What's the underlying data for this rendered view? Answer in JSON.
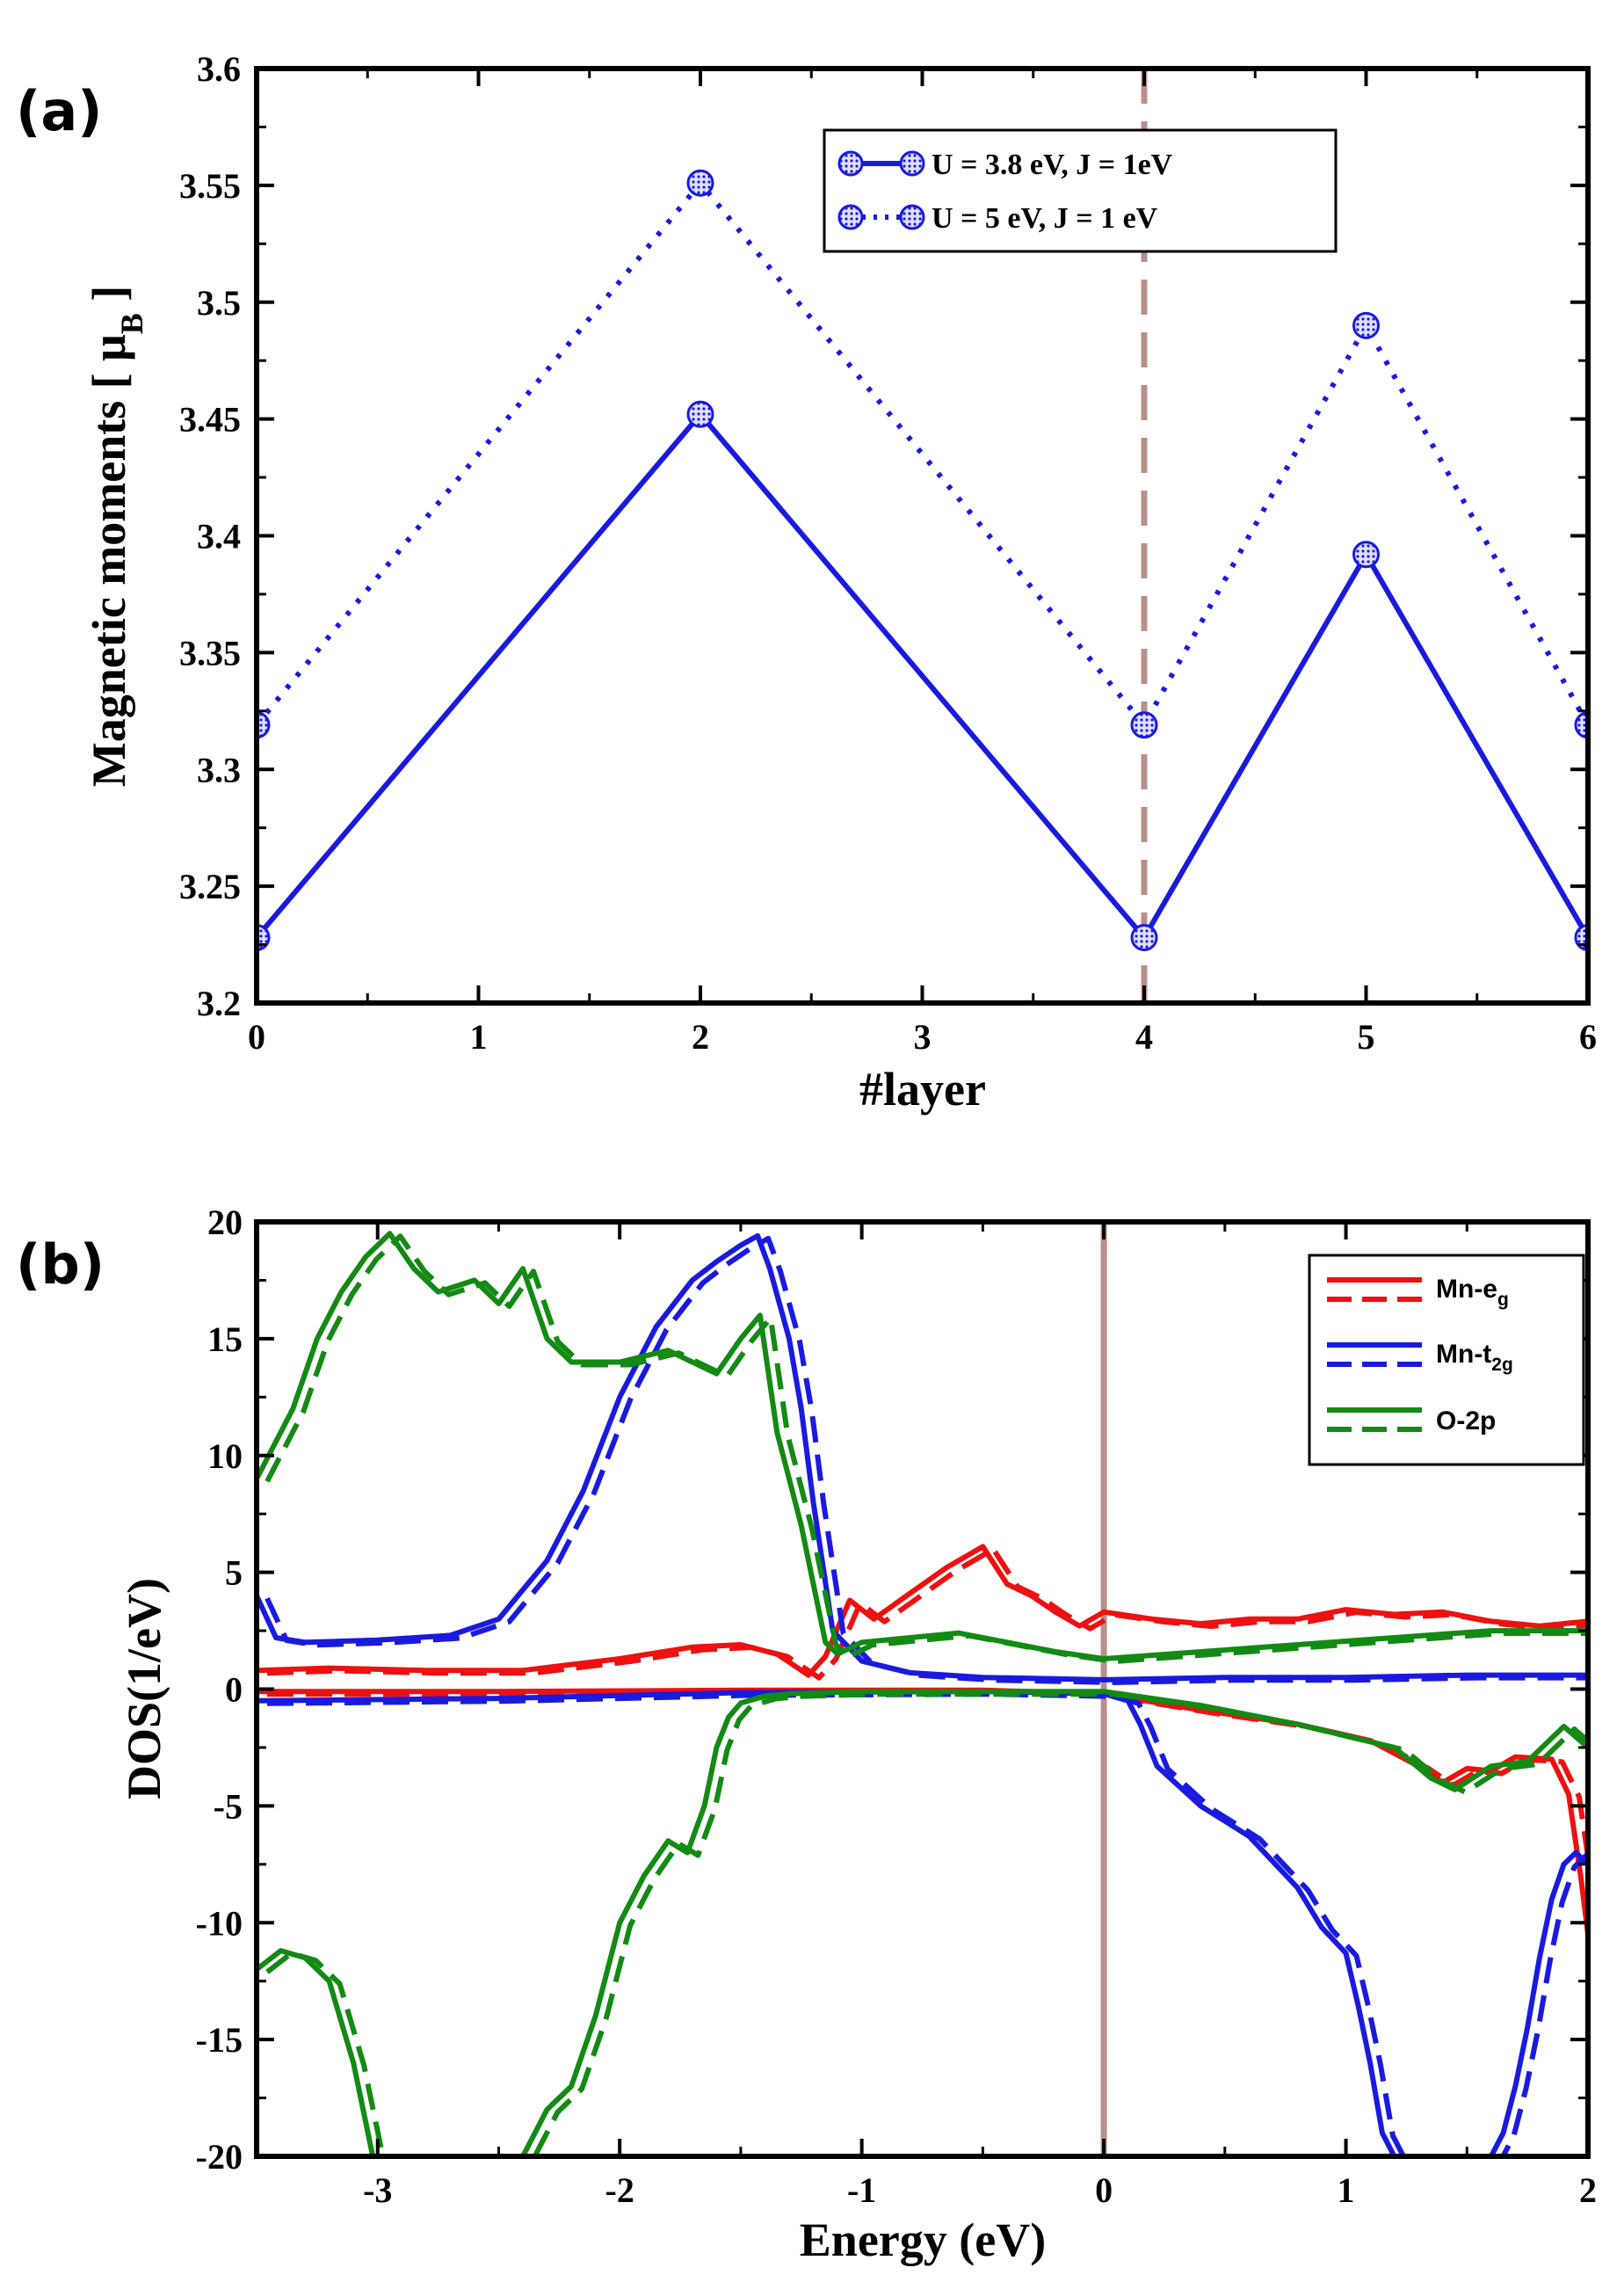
{
  "panels": {
    "a": {
      "label": "(a)"
    },
    "b": {
      "label": "(b)"
    }
  },
  "chart_data": [
    {
      "id": "a",
      "type": "line",
      "title": "",
      "xlabel": "#layer",
      "ylabel": "Magnetic moments [ μB ]",
      "ylabel_main": "Magnetic moments [ μ",
      "ylabel_sub": "B",
      "ylabel_end": " ]",
      "xlim": [
        0,
        6
      ],
      "ylim": [
        3.2,
        3.6
      ],
      "xticks": [
        0,
        1,
        2,
        3,
        4,
        5,
        6
      ],
      "xtick_labels": [
        "0",
        "1",
        "2",
        "3",
        "4",
        "5",
        "6"
      ],
      "yticks": [
        3.2,
        3.25,
        3.3,
        3.35,
        3.4,
        3.45,
        3.5,
        3.55,
        3.6
      ],
      "ytick_labels": [
        "3.2",
        "3.25",
        "3.3",
        "3.35",
        "3.4",
        "3.45",
        "3.5",
        "3.55",
        "3.6"
      ],
      "vline": {
        "x": 4,
        "style": "dashed",
        "color": "#b8908a"
      },
      "legend_position": "top-right",
      "series": [
        {
          "name": "U = 3.8 eV, J = 1eV",
          "style": "solid",
          "color": "#1a1adf",
          "x": [
            0,
            2,
            4,
            5,
            6
          ],
          "y": [
            3.228,
            3.452,
            3.228,
            3.392,
            3.228
          ]
        },
        {
          "name": "U = 5 eV, J = 1 eV",
          "style": "dotted",
          "color": "#1a1adf",
          "x": [
            0,
            2,
            4,
            5,
            6
          ],
          "y": [
            3.319,
            3.551,
            3.319,
            3.49,
            3.319
          ]
        }
      ]
    },
    {
      "id": "b",
      "type": "line",
      "title": "",
      "xlabel": "Energy (eV)",
      "ylabel": "DOS(1/eV)",
      "xlim": [
        -3.5,
        2
      ],
      "ylim": [
        -20,
        20
      ],
      "xticks": [
        -3,
        -2,
        -1,
        0,
        1,
        2
      ],
      "xtick_labels": [
        "-3",
        "-2",
        "-1",
        "0",
        "1",
        "2"
      ],
      "yticks": [
        -20,
        -15,
        -10,
        -5,
        0,
        5,
        10,
        15,
        20
      ],
      "ytick_labels": [
        "-20",
        "-15",
        "-10",
        "-5",
        "0",
        "5",
        "10",
        "15",
        "20"
      ],
      "vline": {
        "x": 0,
        "style": "solid",
        "color": "#b8908a"
      },
      "legend_position": "top-right",
      "legend": [
        {
          "main": "Mn-e",
          "sub": "g",
          "color": "#ee1111"
        },
        {
          "main": "Mn-t",
          "sub": "2g",
          "color": "#1a1adf"
        },
        {
          "main": "O-2p",
          "sub": "",
          "color": "#138a13"
        }
      ],
      "series": [
        {
          "name": "Mn-eg up",
          "color": "#ee1111",
          "style": "solid",
          "x": [
            -3.5,
            -3.2,
            -2.8,
            -2.4,
            -2.0,
            -1.7,
            -1.5,
            -1.35,
            -1.22,
            -1.15,
            -1.05,
            -0.95,
            -0.8,
            -0.65,
            -0.5,
            -0.4,
            -0.3,
            -0.2,
            -0.1,
            0.0,
            0.2,
            0.4,
            0.6,
            0.8,
            1.0,
            1.2,
            1.4,
            1.6,
            1.8,
            2.0
          ],
          "y": [
            0.8,
            0.9,
            0.8,
            0.8,
            1.3,
            1.8,
            1.9,
            1.5,
            0.6,
            1.4,
            3.8,
            3.0,
            4.1,
            5.2,
            6.1,
            4.5,
            4.0,
            3.3,
            2.7,
            3.3,
            3.0,
            2.8,
            3.0,
            3.0,
            3.4,
            3.2,
            3.3,
            2.9,
            2.7,
            2.9
          ]
        },
        {
          "name": "Mn-eg down",
          "color": "#ee1111",
          "style": "solid",
          "x": [
            -3.5,
            -2.5,
            -1.5,
            -0.5,
            0.0,
            0.4,
            0.8,
            1.1,
            1.3,
            1.4,
            1.5,
            1.6,
            1.7,
            1.85,
            1.92,
            1.97,
            2.0
          ],
          "y": [
            -0.1,
            -0.1,
            -0.05,
            -0.05,
            -0.2,
            -0.9,
            -1.5,
            -2.2,
            -3.3,
            -4.0,
            -3.4,
            -3.5,
            -2.9,
            -3.0,
            -4.5,
            -8.0,
            -10.5
          ]
        },
        {
          "name": "Mn-t2g up",
          "color": "#1a1adf",
          "style": "solid",
          "x": [
            -3.5,
            -3.42,
            -3.3,
            -3.0,
            -2.7,
            -2.5,
            -2.3,
            -2.15,
            -2.0,
            -1.85,
            -1.7,
            -1.6,
            -1.5,
            -1.43,
            -1.38,
            -1.3,
            -1.25,
            -1.2,
            -1.12,
            -1.0,
            -0.8,
            -0.5,
            0.0,
            0.5,
            1.0,
            1.5,
            2.0
          ],
          "y": [
            4.0,
            2.2,
            2.0,
            2.1,
            2.3,
            3.0,
            5.5,
            8.5,
            12.5,
            15.5,
            17.5,
            18.3,
            19.0,
            19.4,
            18.0,
            15.0,
            12.0,
            8.0,
            2.5,
            1.2,
            0.7,
            0.5,
            0.4,
            0.5,
            0.5,
            0.6,
            0.6
          ]
        },
        {
          "name": "Mn-t2g down",
          "color": "#1a1adf",
          "style": "solid",
          "x": [
            -3.5,
            -2.5,
            -1.5,
            -0.5,
            0.0,
            0.1,
            0.15,
            0.22,
            0.4,
            0.6,
            0.8,
            0.9,
            1.0,
            1.05,
            1.1,
            1.15,
            1.2,
            1.6,
            1.65,
            1.7,
            1.75,
            1.8,
            1.85,
            1.9,
            1.95,
            2.0
          ],
          "y": [
            -0.5,
            -0.4,
            -0.15,
            -0.1,
            -0.2,
            -0.5,
            -1.5,
            -3.3,
            -5.0,
            -6.3,
            -8.5,
            -10.2,
            -11.3,
            -13.5,
            -16.0,
            -19.0,
            -20.0,
            -20.0,
            -19.0,
            -17.0,
            -14.5,
            -11.5,
            -9.0,
            -7.5,
            -7.0,
            -7.5
          ]
        },
        {
          "name": "O-2p up",
          "color": "#138a13",
          "style": "solid",
          "x": [
            -3.5,
            -3.35,
            -3.25,
            -3.15,
            -3.05,
            -2.95,
            -2.85,
            -2.75,
            -2.6,
            -2.5,
            -2.4,
            -2.3,
            -2.2,
            -2.0,
            -1.8,
            -1.6,
            -1.5,
            -1.42,
            -1.35,
            -1.3,
            -1.25,
            -1.2,
            -1.15,
            -1.1,
            -1.0,
            -0.8,
            -0.6,
            -0.4,
            -0.2,
            0.0,
            0.4,
            0.8,
            1.2,
            1.6,
            2.0
          ],
          "y": [
            9.0,
            12.0,
            15.0,
            17.0,
            18.5,
            19.5,
            18.0,
            17.0,
            17.5,
            16.5,
            18.0,
            15.0,
            14.0,
            14.0,
            14.5,
            13.5,
            15.0,
            16.0,
            11.0,
            9.0,
            7.0,
            4.5,
            2.0,
            1.5,
            2.0,
            2.2,
            2.4,
            2.0,
            1.6,
            1.3,
            1.6,
            1.9,
            2.2,
            2.5,
            2.5
          ]
        },
        {
          "name": "O-2p down",
          "color": "#138a13",
          "style": "solid",
          "x": [
            -3.5,
            -3.4,
            -3.3,
            -3.2,
            -3.1,
            -3.02,
            -2.4,
            -2.3,
            -2.2,
            -2.1,
            -2.0,
            -1.9,
            -1.8,
            -1.72,
            -1.65,
            -1.6,
            -1.55,
            -1.5,
            -1.4,
            -1.3,
            -1.0,
            -0.5,
            0.0,
            0.4,
            0.8,
            1.0,
            1.2,
            1.35,
            1.45,
            1.6,
            1.75,
            1.9,
            2.0
          ],
          "y": [
            -12.0,
            -11.2,
            -11.5,
            -12.5,
            -16.0,
            -20.0,
            -20.0,
            -18.0,
            -17.0,
            -14.0,
            -10.0,
            -8.0,
            -6.5,
            -7.0,
            -5.0,
            -2.5,
            -1.2,
            -0.6,
            -0.3,
            -0.2,
            -0.1,
            -0.1,
            -0.1,
            -0.7,
            -1.5,
            -2.0,
            -2.5,
            -3.8,
            -4.3,
            -3.3,
            -3.1,
            -1.6,
            -2.5
          ]
        }
      ]
    }
  ]
}
